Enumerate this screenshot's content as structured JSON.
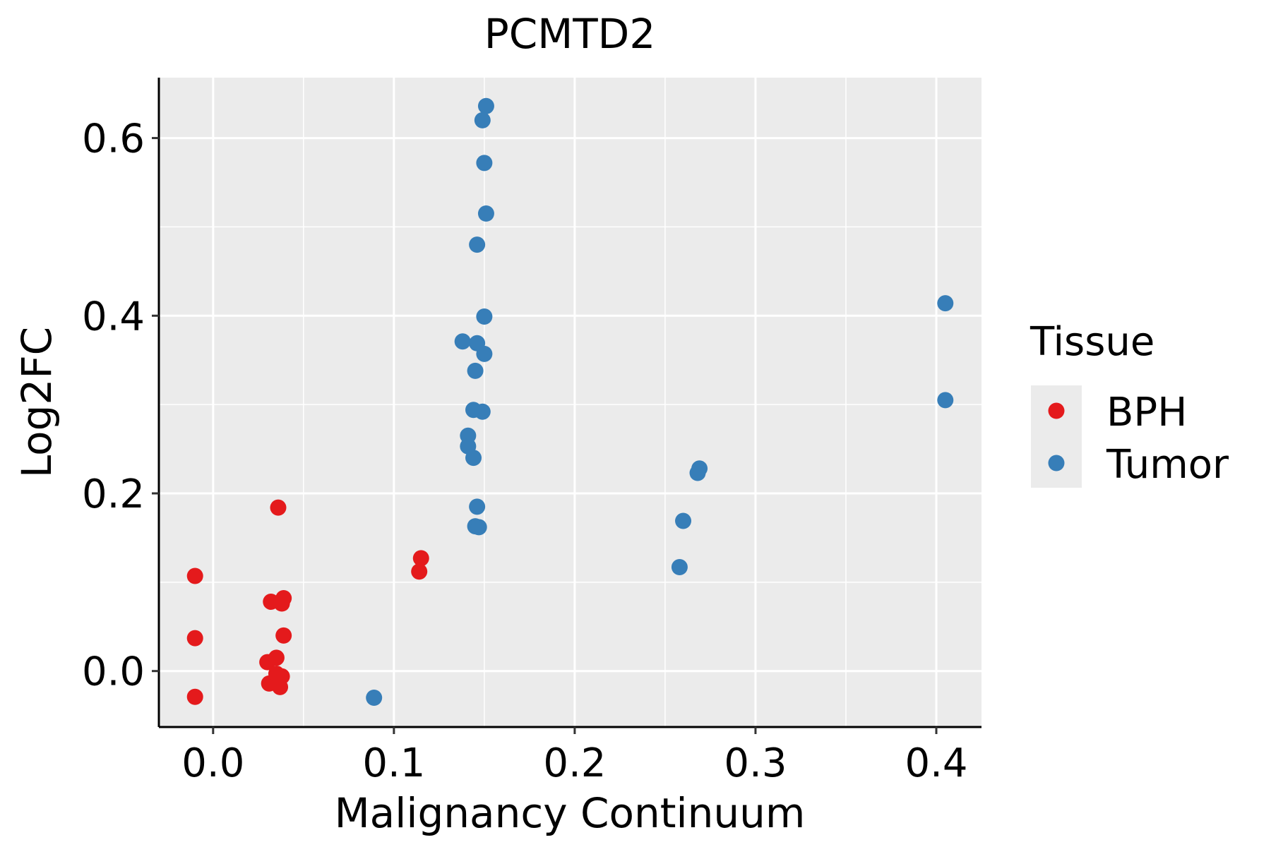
{
  "chart_data": {
    "type": "scatter",
    "title": "PCMTD2",
    "xlabel": "Malignancy Continuum",
    "ylabel": "Log2FC",
    "xlim": [
      -0.03,
      0.425
    ],
    "ylim": [
      -0.063,
      0.668
    ],
    "xticks": [
      0.0,
      0.1,
      0.2,
      0.3,
      0.4
    ],
    "xtick_labels": [
      "0.0",
      "0.1",
      "0.2",
      "0.3",
      "0.4"
    ],
    "yticks": [
      0.0,
      0.2,
      0.4,
      0.6
    ],
    "ytick_labels": [
      "0.0",
      "0.2",
      "0.4",
      "0.6"
    ],
    "grid": true,
    "legend": {
      "title": "Tissue",
      "placement": "right"
    },
    "series": [
      {
        "name": "BPH",
        "color": "#E41A1C",
        "points": [
          [
            -0.01,
            0.107
          ],
          [
            -0.01,
            0.037
          ],
          [
            -0.01,
            -0.029
          ],
          [
            0.036,
            0.184
          ],
          [
            0.032,
            0.078
          ],
          [
            0.039,
            0.082
          ],
          [
            0.038,
            0.076
          ],
          [
            0.039,
            0.04
          ],
          [
            0.03,
            0.01
          ],
          [
            0.035,
            0.015
          ],
          [
            0.031,
            -0.014
          ],
          [
            0.036,
            -0.006
          ],
          [
            0.038,
            -0.006
          ],
          [
            0.037,
            -0.018
          ],
          [
            0.035,
            -0.003
          ],
          [
            0.115,
            0.127
          ],
          [
            0.114,
            0.112
          ]
        ]
      },
      {
        "name": "Tumor",
        "color": "#377EB8",
        "points": [
          [
            0.151,
            0.636
          ],
          [
            0.149,
            0.62
          ],
          [
            0.15,
            0.572
          ],
          [
            0.151,
            0.515
          ],
          [
            0.146,
            0.48
          ],
          [
            0.15,
            0.399
          ],
          [
            0.138,
            0.371
          ],
          [
            0.146,
            0.369
          ],
          [
            0.15,
            0.357
          ],
          [
            0.145,
            0.338
          ],
          [
            0.144,
            0.294
          ],
          [
            0.149,
            0.292
          ],
          [
            0.141,
            0.265
          ],
          [
            0.141,
            0.253
          ],
          [
            0.144,
            0.24
          ],
          [
            0.146,
            0.185
          ],
          [
            0.145,
            0.163
          ],
          [
            0.147,
            0.162
          ],
          [
            0.089,
            -0.03
          ],
          [
            0.269,
            0.228
          ],
          [
            0.268,
            0.223
          ],
          [
            0.26,
            0.169
          ],
          [
            0.258,
            0.117
          ],
          [
            0.405,
            0.414
          ],
          [
            0.405,
            0.305
          ]
        ]
      }
    ]
  }
}
